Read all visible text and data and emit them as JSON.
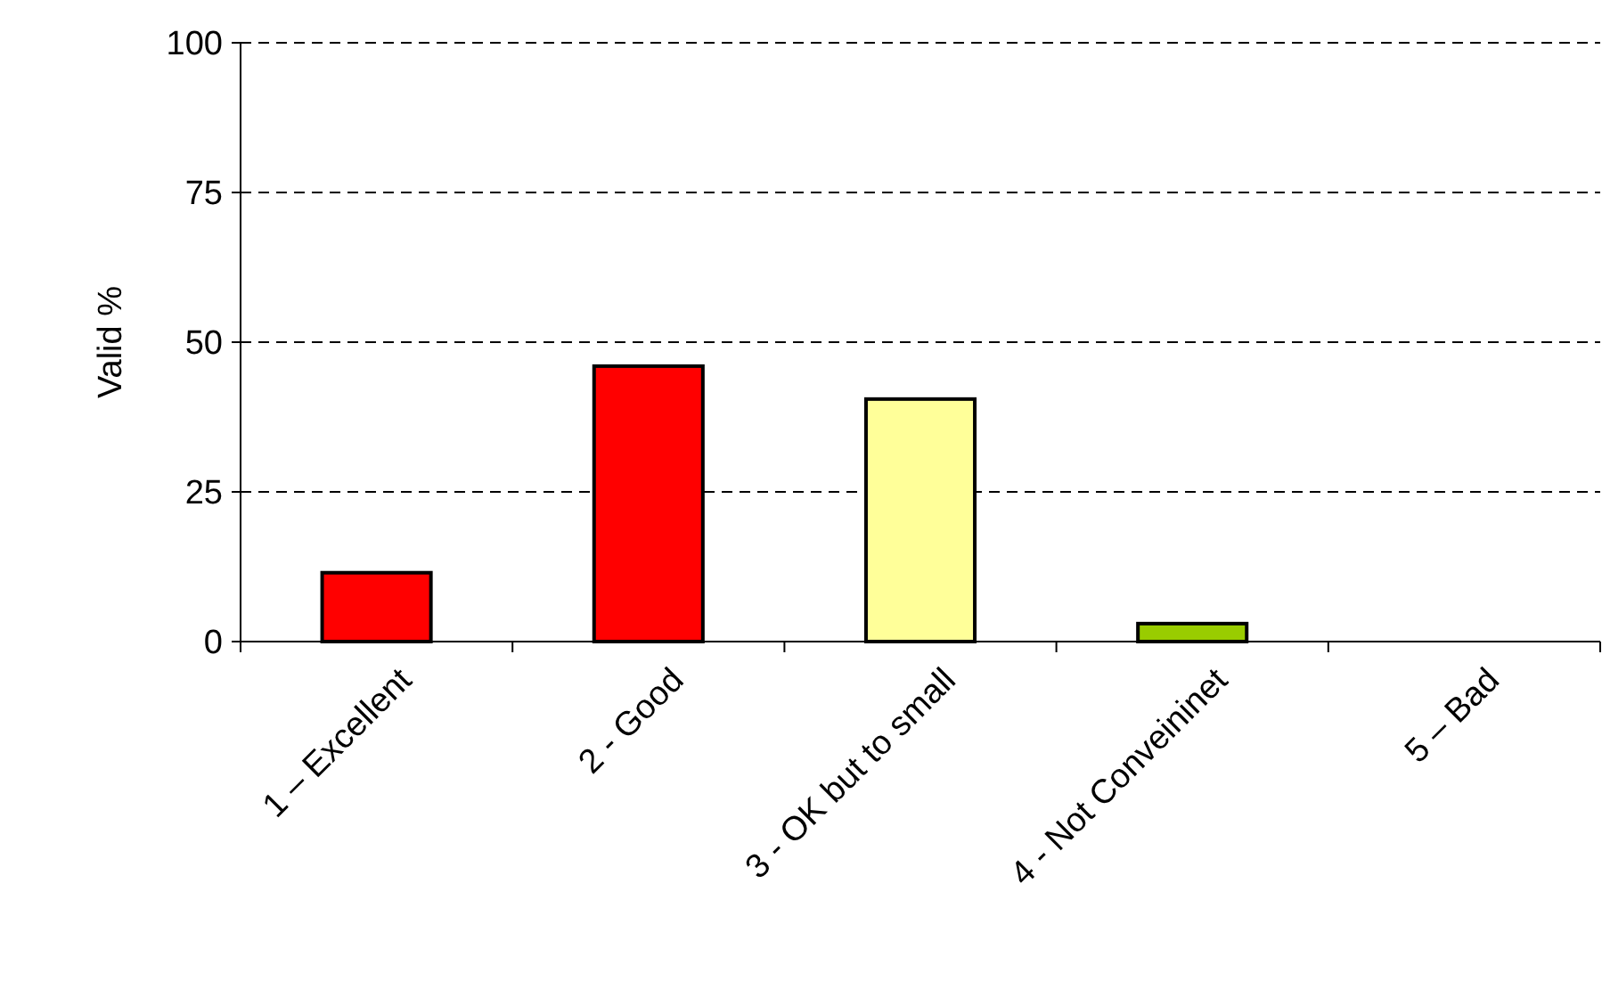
{
  "chart_data": {
    "type": "bar",
    "ylabel": "Valid %",
    "categories": [
      "1 – Excellent",
      "2 - Good",
      "3 - OK but to small",
      "4 - Not Conveininet",
      "5 – Bad"
    ],
    "values": [
      11.5,
      46,
      40.5,
      3,
      0
    ],
    "colors": [
      "#ff0000",
      "#ff0000",
      "#ffff99",
      "#99cc00",
      "#99cc00"
    ],
    "ylim": [
      0,
      100
    ],
    "yticks": [
      0,
      25,
      50,
      75,
      100
    ],
    "grid": "y"
  }
}
